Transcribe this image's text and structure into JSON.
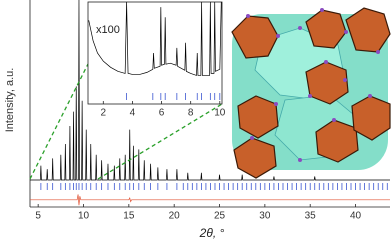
{
  "chart_data": [
    {
      "type": "line",
      "x_label": "2θ, °",
      "y_label": "Intensity, a.u.",
      "xlim": [
        4.1,
        43.8
      ],
      "xticks": [
        5,
        10,
        15,
        20,
        25,
        30,
        35,
        40
      ],
      "ylim": [
        -15,
        100
      ],
      "series": [
        {
          "color": "#000000",
          "x": [
            4.1,
            5.24,
            5.3,
            5.36,
            5.94,
            6.0,
            6.06,
            6.54,
            6.6,
            6.66,
            7.44,
            7.5,
            7.56,
            7.94,
            8.0,
            8.06,
            8.44,
            8.5,
            8.56,
            8.84,
            8.9,
            8.96,
            9.14,
            9.2,
            9.26,
            9.44,
            9.5,
            9.56,
            9.79,
            9.85,
            9.91,
            10.24,
            10.3,
            10.36,
            10.74,
            10.8,
            10.86,
            11.34,
            11.4,
            11.46,
            11.94,
            12.0,
            12.06,
            12.64,
            12.7,
            12.76,
            13.34,
            13.4,
            13.46,
            13.94,
            14.0,
            14.06,
            14.54,
            14.6,
            14.66,
            15.04,
            15.1,
            15.16,
            15.44,
            15.5,
            15.56,
            16.04,
            16.1,
            16.16,
            16.64,
            16.7,
            16.76,
            17.34,
            17.4,
            17.46,
            18.14,
            18.2,
            18.26,
            19.14,
            19.2,
            19.26,
            20.24,
            20.3,
            20.36,
            21.44,
            21.5,
            21.56,
            22.94,
            23.0,
            23.06,
            24.94,
            25.0,
            25.06,
            27.44,
            27.5,
            27.56,
            30.94,
            31.0,
            31.06,
            35.44,
            35.5,
            35.56,
            43.8
          ],
          "values": [
            0,
            0,
            8,
            0,
            0,
            6,
            0,
            0,
            12,
            0,
            0,
            14,
            0,
            0,
            20,
            0,
            0,
            30,
            0,
            0,
            38,
            0,
            0,
            52,
            0,
            0,
            100,
            0,
            0,
            44,
            0,
            0,
            28,
            0,
            0,
            20,
            0,
            0,
            14,
            0,
            0,
            11,
            0,
            0,
            9,
            0,
            0,
            8,
            0,
            0,
            12,
            0,
            0,
            14,
            0,
            0,
            28,
            0,
            0,
            19,
            0,
            0,
            17,
            0,
            0,
            11,
            0,
            0,
            9,
            0,
            0,
            7,
            0,
            0,
            6,
            0,
            0,
            6,
            0,
            0,
            4,
            0,
            0,
            4,
            0,
            0,
            3,
            0,
            0,
            3,
            0,
            0,
            2,
            0,
            0,
            2,
            0,
            0
          ]
        },
        {
          "color": "#e05030",
          "x": [
            4.1,
            9.3,
            9.4,
            9.5,
            9.6,
            9.7,
            15.0,
            15.1,
            15.2,
            15.3,
            43.8
          ],
          "values": [
            -11,
            -11,
            -8,
            -14,
            -9,
            -11,
            -11,
            -10,
            -12,
            -11,
            -11
          ]
        }
      ],
      "reflections": {
        "color": "#3a55d0",
        "x": [
          5.3,
          6.0,
          6.6,
          7.5,
          8.0,
          8.5,
          8.9,
          9.2,
          9.5,
          9.85,
          10.3,
          10.8,
          11.4,
          12.0,
          12.7,
          13.4,
          14.0,
          14.6,
          15.1,
          15.5,
          16.1,
          16.7,
          17.4,
          18.2,
          19.2,
          20.3,
          21.0,
          21.5,
          22.0,
          22.5,
          23.0,
          23.5,
          24.0,
          24.5,
          25.0,
          25.5,
          26.0,
          26.5,
          27.0,
          27.5,
          28.0,
          28.5,
          29.0,
          29.5,
          30.0,
          30.5,
          31.0,
          31.5,
          32.0,
          32.5,
          33.0,
          33.5,
          34.0,
          34.5,
          35.0,
          35.5,
          36.0,
          36.5,
          37.0,
          37.5,
          38.0,
          38.5,
          39.0,
          39.5,
          40.0,
          40.5,
          41.0,
          41.5,
          42.0,
          42.5,
          43.0,
          43.5
        ]
      }
    },
    {
      "type": "line",
      "annotation": "x100",
      "xlim": [
        0.95,
        10.15
      ],
      "xticks": [
        2,
        4,
        6,
        8,
        10
      ],
      "ylim": [
        0,
        100
      ],
      "series": [
        {
          "color": "#000000",
          "x": [
            1.0,
            1.3,
            1.6,
            2.0,
            2.5,
            3.0,
            3.5,
            3.6,
            3.7,
            4.0,
            4.5,
            5.0,
            5.4,
            5.45,
            5.5,
            5.9,
            5.95,
            6.0,
            6.2,
            6.25,
            6.3,
            6.6,
            7.0,
            7.05,
            7.1,
            7.6,
            7.65,
            7.7,
            8.0,
            8.4,
            8.45,
            8.5,
            8.7,
            8.75,
            8.8,
            9.3,
            9.35,
            9.4,
            9.6,
            9.65,
            9.7,
            10.0,
            10.1
          ],
          "values": [
            82,
            62,
            50,
            42,
            36,
            32,
            30,
            100,
            30,
            29,
            29,
            31,
            34,
            50,
            35,
            37,
            95,
            38,
            39,
            85,
            39,
            40,
            38,
            55,
            37,
            33,
            60,
            32,
            30,
            28,
            50,
            28,
            28,
            100,
            28,
            28,
            100,
            30,
            30,
            100,
            32,
            34,
            100
          ]
        }
      ],
      "reflections": {
        "color": "#3a55d0",
        "x": [
          3.6,
          5.4,
          5.95,
          6.25,
          7.05,
          7.65,
          8.45,
          8.75,
          9.35,
          9.65,
          10.0
        ]
      }
    }
  ]
}
